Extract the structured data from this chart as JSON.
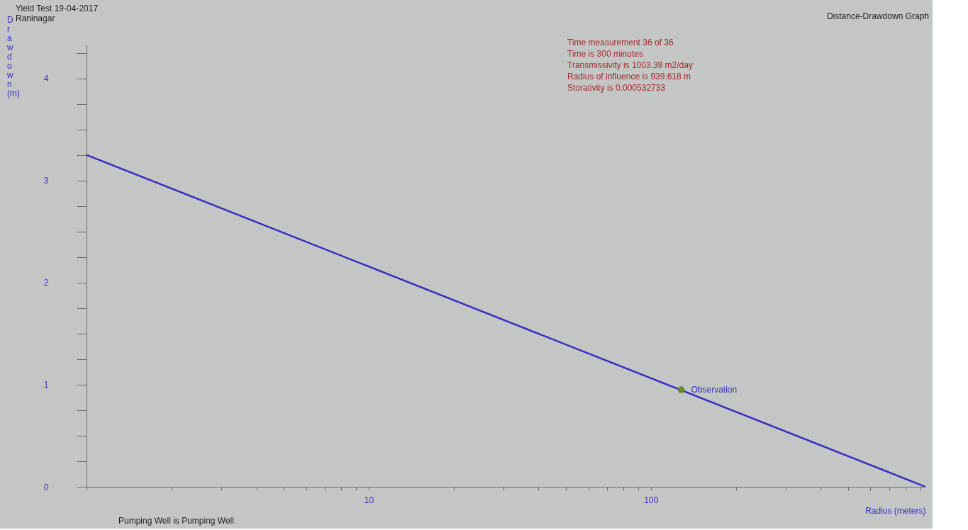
{
  "chart_data": {
    "type": "line",
    "title": "Yield Test 19-04-2017",
    "subtitle": "Raninagar",
    "xlabel": "Radius (meters)",
    "ylabel": "Drawdown (m)",
    "log": "x",
    "xlim": [
      1,
      939.618
    ],
    "ylim": [
      0,
      4.33
    ],
    "xticks": [
      {
        "value": 1,
        "label": null
      },
      {
        "value": 2,
        "label": null
      },
      {
        "value": 3,
        "label": null
      },
      {
        "value": 4,
        "label": null
      },
      {
        "value": 5,
        "label": null
      },
      {
        "value": 6,
        "label": null
      },
      {
        "value": 7,
        "label": null
      },
      {
        "value": 8,
        "label": null
      },
      {
        "value": 9,
        "label": null
      },
      10,
      {
        "value": 20,
        "label": null
      },
      {
        "value": 30,
        "label": null
      },
      {
        "value": 40,
        "label": null
      },
      {
        "value": 50,
        "label": null
      },
      {
        "value": 60,
        "label": null
      },
      {
        "value": 70,
        "label": null
      },
      {
        "value": 80,
        "label": null
      },
      {
        "value": 90,
        "label": null
      },
      100,
      {
        "value": 200,
        "label": null
      },
      {
        "value": 300,
        "label": null
      },
      {
        "value": 400,
        "label": null
      },
      {
        "value": 500,
        "label": null
      },
      {
        "value": 600,
        "label": null
      },
      {
        "value": 700,
        "label": null
      },
      {
        "value": 800,
        "label": null
      },
      {
        "value": 900,
        "label": null
      }
    ],
    "yticks": [
      0,
      {
        "value": 0.25,
        "label": null
      },
      {
        "value": 0.5,
        "label": null
      },
      {
        "value": 0.75,
        "label": null
      },
      1,
      {
        "value": 1.25,
        "label": null
      },
      {
        "value": 1.5,
        "label": null
      },
      {
        "value": 1.75,
        "label": null
      },
      2,
      {
        "value": 2.25,
        "label": null
      },
      {
        "value": 2.5,
        "label": null
      },
      {
        "value": 2.75,
        "label": null
      },
      3,
      {
        "value": 3.25,
        "label": null
      },
      {
        "value": 3.5,
        "label": null
      },
      {
        "value": 3.75,
        "label": null
      },
      4,
      {
        "value": 4.25,
        "label": null
      }
    ],
    "grid": false,
    "series": [
      {
        "type": "line",
        "color": "#3a2fbf",
        "x": [
          1,
          939.618
        ],
        "values": [
          3.25,
          0
        ]
      },
      {
        "type": "scatter",
        "name": "Observation",
        "color": "#6a8a2a",
        "x": [
          128
        ],
        "values": [
          0.95
        ]
      }
    ],
    "annotations": [
      "Time measurement 36 of 36",
      "Time is 300 minutes",
      "Transmissivity is 1003.39 m2/day",
      "Radius of influence is 939.618 m",
      "Storativity is 0.000532733",
      "Distance-Drawdown Graph",
      "Pumping Well is Pumping Well"
    ]
  }
}
